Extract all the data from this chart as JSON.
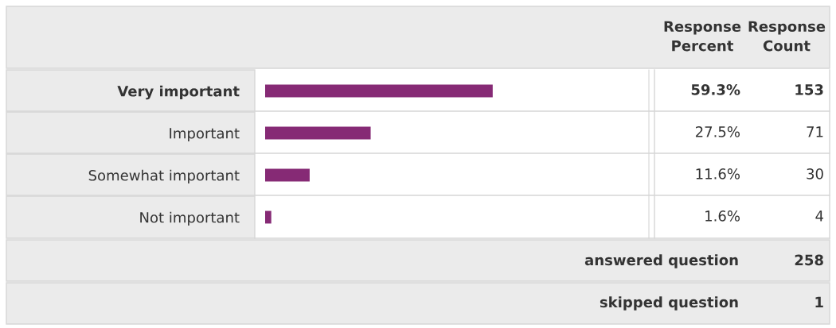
{
  "chart_data": {
    "type": "bar",
    "orientation": "horizontal",
    "categories": [
      "Very important",
      "Important",
      "Somewhat important",
      "Not important"
    ],
    "values": [
      59.3,
      27.5,
      11.6,
      1.6
    ],
    "value_labels": [
      "59.3%",
      "27.5%",
      "11.6%",
      "1.6%"
    ],
    "color": "#862a75",
    "xlim": [
      0,
      100
    ],
    "tick_labels": "y",
    "grid": false,
    "legend": false,
    "annotations": [
      "Response\nPercent",
      "Response\nCount",
      "153",
      "71",
      "30",
      "4",
      "answered question",
      "258",
      "skipped question",
      "1"
    ]
  }
}
